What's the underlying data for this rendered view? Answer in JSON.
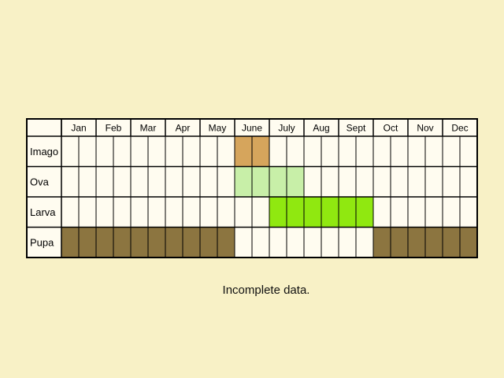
{
  "chart_data": {
    "type": "table",
    "months": [
      "Jan",
      "Feb",
      "Mar",
      "Apr",
      "May",
      "June",
      "July",
      "Aug",
      "Sept",
      "Oct",
      "Nov",
      "Dec"
    ],
    "halves_per_month": 2,
    "rows": [
      {
        "label": "Imago",
        "color": "#d6a55c",
        "cells": [
          0,
          0,
          0,
          0,
          0,
          0,
          0,
          0,
          0,
          0,
          1,
          1,
          0,
          0,
          0,
          0,
          0,
          0,
          0,
          0,
          0,
          0,
          0,
          0
        ]
      },
      {
        "label": "Ova",
        "color": "#c8efa8",
        "cells": [
          0,
          0,
          0,
          0,
          0,
          0,
          0,
          0,
          0,
          0,
          1,
          1,
          1,
          1,
          0,
          0,
          0,
          0,
          0,
          0,
          0,
          0,
          0,
          0
        ]
      },
      {
        "label": "Larva",
        "color": "#90e810",
        "cells": [
          0,
          0,
          0,
          0,
          0,
          0,
          0,
          0,
          0,
          0,
          0,
          0,
          1,
          1,
          1,
          1,
          1,
          1,
          0,
          0,
          0,
          0,
          0,
          0
        ]
      },
      {
        "label": "Pupa",
        "color": "#8c7540",
        "cells": [
          1,
          1,
          1,
          1,
          1,
          1,
          1,
          1,
          1,
          1,
          0,
          0,
          0,
          0,
          0,
          0,
          0,
          0,
          1,
          1,
          1,
          1,
          1,
          1
        ]
      }
    ],
    "empty_color": "#fffcf0",
    "footnote": "Incomplete data."
  }
}
